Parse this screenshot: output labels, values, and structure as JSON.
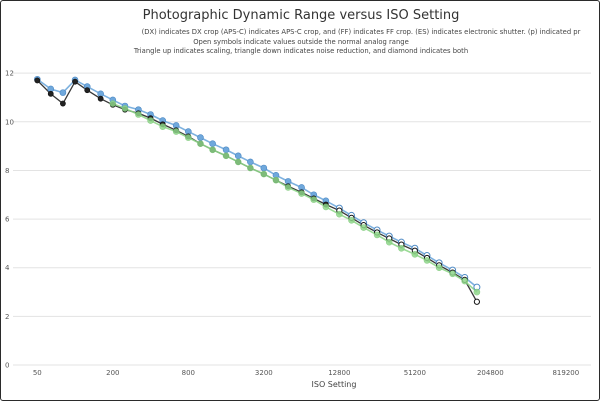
{
  "chart_data": {
    "type": "line",
    "title": "Photographic Dynamic Range versus ISO Setting",
    "subtitles": [
      "(DX) indicates DX crop (APS-C) indicates APS-C crop, and (FF) indicates FF crop. (ES) indicates electronic shutter. (p) indicated pr",
      "Open symbols indicate values outside the normal analog range",
      "Triangle up indicates scaling, triangle down indicates noise reduction, and diamond indicates both"
    ],
    "xlabel": "ISO Setting",
    "ylabel": "",
    "x_scale": "log2",
    "x_ticks": [
      50,
      200,
      800,
      3200,
      12800,
      51200,
      204800,
      819200
    ],
    "xlim": [
      32,
      1300000
    ],
    "y_ticks": [
      0,
      2,
      4,
      6,
      8,
      10,
      12
    ],
    "ylim": [
      0,
      12.5
    ],
    "grid": true,
    "series": [
      {
        "color": "#6fa8dc",
        "points": [
          [
            50,
            11.75
          ],
          [
            64,
            11.35
          ],
          [
            80,
            11.2
          ],
          [
            100,
            11.72
          ],
          [
            125,
            11.45
          ],
          [
            160,
            11.15
          ],
          [
            200,
            10.9
          ],
          [
            250,
            10.65
          ],
          [
            320,
            10.5
          ],
          [
            400,
            10.3
          ],
          [
            500,
            10.05
          ],
          [
            640,
            9.85
          ],
          [
            800,
            9.6
          ],
          [
            1000,
            9.35
          ],
          [
            1250,
            9.1
          ],
          [
            1600,
            8.85
          ],
          [
            2000,
            8.6
          ],
          [
            2500,
            8.35
          ],
          [
            3200,
            8.1
          ],
          [
            4000,
            7.8
          ],
          [
            5000,
            7.55
          ],
          [
            6400,
            7.3
          ],
          [
            8000,
            7.0
          ],
          [
            10000,
            6.75
          ],
          [
            12800,
            6.45
          ],
          [
            16000,
            6.15
          ],
          [
            20000,
            5.85
          ],
          [
            25600,
            5.55
          ],
          [
            32000,
            5.3
          ],
          [
            40000,
            5.05
          ],
          [
            51200,
            4.8
          ],
          [
            64000,
            4.5
          ],
          [
            80000,
            4.2
          ],
          [
            102400,
            3.9
          ],
          [
            128000,
            3.6
          ],
          [
            160000,
            3.2
          ]
        ]
      },
      {
        "color": "#222222",
        "points": [
          [
            50,
            11.7
          ],
          [
            64,
            11.15
          ],
          [
            80,
            10.75
          ],
          [
            100,
            11.65
          ],
          [
            125,
            11.3
          ],
          [
            160,
            10.95
          ],
          [
            200,
            10.7
          ],
          [
            250,
            10.5
          ],
          [
            320,
            10.35
          ],
          [
            400,
            10.15
          ],
          [
            500,
            9.9
          ],
          [
            640,
            9.65
          ],
          [
            800,
            9.4
          ],
          [
            1000,
            9.1
          ],
          [
            1250,
            8.85
          ],
          [
            1600,
            8.6
          ],
          [
            2000,
            8.35
          ],
          [
            2500,
            8.1
          ],
          [
            3200,
            7.85
          ],
          [
            4000,
            7.6
          ],
          [
            5000,
            7.35
          ],
          [
            6400,
            7.1
          ],
          [
            8000,
            6.85
          ],
          [
            10000,
            6.6
          ],
          [
            12800,
            6.35
          ],
          [
            16000,
            6.05
          ],
          [
            20000,
            5.75
          ],
          [
            25600,
            5.45
          ],
          [
            32000,
            5.2
          ],
          [
            40000,
            4.95
          ],
          [
            51200,
            4.7
          ],
          [
            64000,
            4.4
          ],
          [
            80000,
            4.1
          ],
          [
            102400,
            3.8
          ],
          [
            128000,
            3.5
          ],
          [
            160000,
            2.6
          ]
        ]
      },
      {
        "color": "#8fd68a",
        "points": [
          [
            200,
            10.75
          ],
          [
            250,
            10.55
          ],
          [
            320,
            10.3
          ],
          [
            400,
            10.05
          ],
          [
            500,
            9.8
          ],
          [
            640,
            9.6
          ],
          [
            800,
            9.35
          ],
          [
            1000,
            9.1
          ],
          [
            1250,
            8.85
          ],
          [
            1600,
            8.6
          ],
          [
            2000,
            8.35
          ],
          [
            2500,
            8.1
          ],
          [
            3200,
            7.85
          ],
          [
            4000,
            7.6
          ],
          [
            5000,
            7.3
          ],
          [
            6400,
            7.05
          ],
          [
            8000,
            6.8
          ],
          [
            10000,
            6.5
          ],
          [
            12800,
            6.2
          ],
          [
            16000,
            5.95
          ],
          [
            20000,
            5.65
          ],
          [
            25600,
            5.35
          ],
          [
            32000,
            5.05
          ],
          [
            40000,
            4.8
          ],
          [
            51200,
            4.55
          ],
          [
            64000,
            4.3
          ],
          [
            80000,
            4.0
          ],
          [
            102400,
            3.75
          ],
          [
            128000,
            3.45
          ],
          [
            160000,
            3.0
          ]
        ]
      }
    ]
  }
}
